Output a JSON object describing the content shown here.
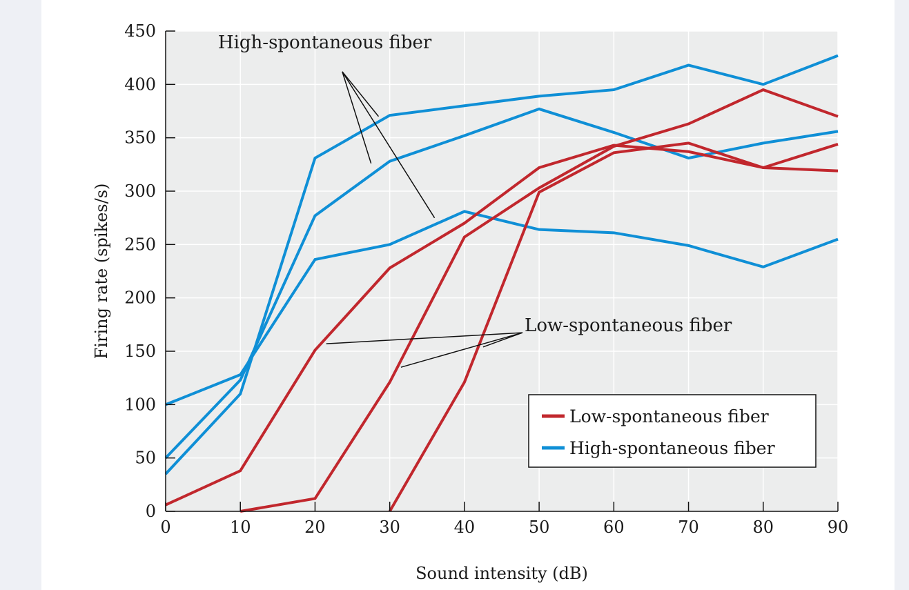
{
  "chart_data": {
    "type": "line",
    "title": "",
    "xlabel": "Sound intensity (dB)",
    "ylabel": "Firing rate (spikes/s)",
    "xlim": [
      0,
      90
    ],
    "ylim": [
      0,
      450
    ],
    "x_ticks": [
      0,
      10,
      20,
      30,
      40,
      50,
      60,
      70,
      80,
      90
    ],
    "y_ticks": [
      0,
      50,
      100,
      150,
      200,
      250,
      300,
      350,
      400,
      450
    ],
    "grid": true,
    "legend": {
      "position": "bottom-right",
      "entries": [
        {
          "label": "Low-spontaneous fiber",
          "color": "#c1272d"
        },
        {
          "label": "High-spontaneous fiber",
          "color": "#0f8fd6"
        }
      ]
    },
    "series": [
      {
        "name": "High-spontaneous fiber",
        "group": "high",
        "color": "#0f8fd6",
        "x": [
          0,
          10,
          20,
          30,
          40,
          50,
          60,
          70,
          80,
          90
        ],
        "values": [
          35,
          110,
          331,
          371,
          380,
          389,
          395,
          418,
          400,
          427
        ]
      },
      {
        "name": "High-spontaneous fiber",
        "group": "high",
        "color": "#0f8fd6",
        "x": [
          0,
          10,
          20,
          30,
          40,
          50,
          60,
          70,
          80,
          90
        ],
        "values": [
          50,
          123,
          277,
          328,
          352,
          377,
          355,
          331,
          345,
          356
        ]
      },
      {
        "name": "High-spontaneous fiber",
        "group": "high",
        "color": "#0f8fd6",
        "x": [
          0,
          10,
          20,
          30,
          40,
          50,
          60,
          70,
          80,
          90
        ],
        "values": [
          100,
          128,
          236,
          250,
          281,
          264,
          261,
          249,
          229,
          255
        ]
      },
      {
        "name": "Low-spontaneous fiber",
        "group": "low",
        "color": "#c1272d",
        "x": [
          0,
          10,
          20,
          30,
          40,
          50,
          60,
          70,
          80,
          90
        ],
        "values": [
          6,
          38,
          151,
          228,
          270,
          322,
          343,
          337,
          322,
          344
        ]
      },
      {
        "name": "Low-spontaneous fiber",
        "group": "low",
        "color": "#c1272d",
        "x": [
          10,
          20,
          30,
          40,
          50,
          60,
          70,
          80,
          90
        ],
        "values": [
          0,
          12,
          121,
          257,
          303,
          342,
          363,
          395,
          370
        ]
      },
      {
        "name": "Low-spontaneous fiber",
        "group": "low",
        "color": "#c1272d",
        "x": [
          30,
          40,
          50,
          60,
          70,
          80,
          90
        ],
        "values": [
          0,
          121,
          299,
          336,
          345,
          322,
          319
        ]
      }
    ],
    "annotations": [
      {
        "text": "High-spontaneous fiber",
        "anchor": [
          23,
          421
        ],
        "pointers": [
          [
            28.5,
            370
          ],
          [
            27.5,
            326
          ],
          [
            36,
            275
          ]
        ]
      },
      {
        "text": "Low-spontaneous fiber",
        "anchor": [
          47.5,
          170
        ],
        "pointers": [
          [
            21.5,
            157
          ],
          [
            31.5,
            135
          ],
          [
            42.5,
            154
          ]
        ]
      }
    ]
  }
}
